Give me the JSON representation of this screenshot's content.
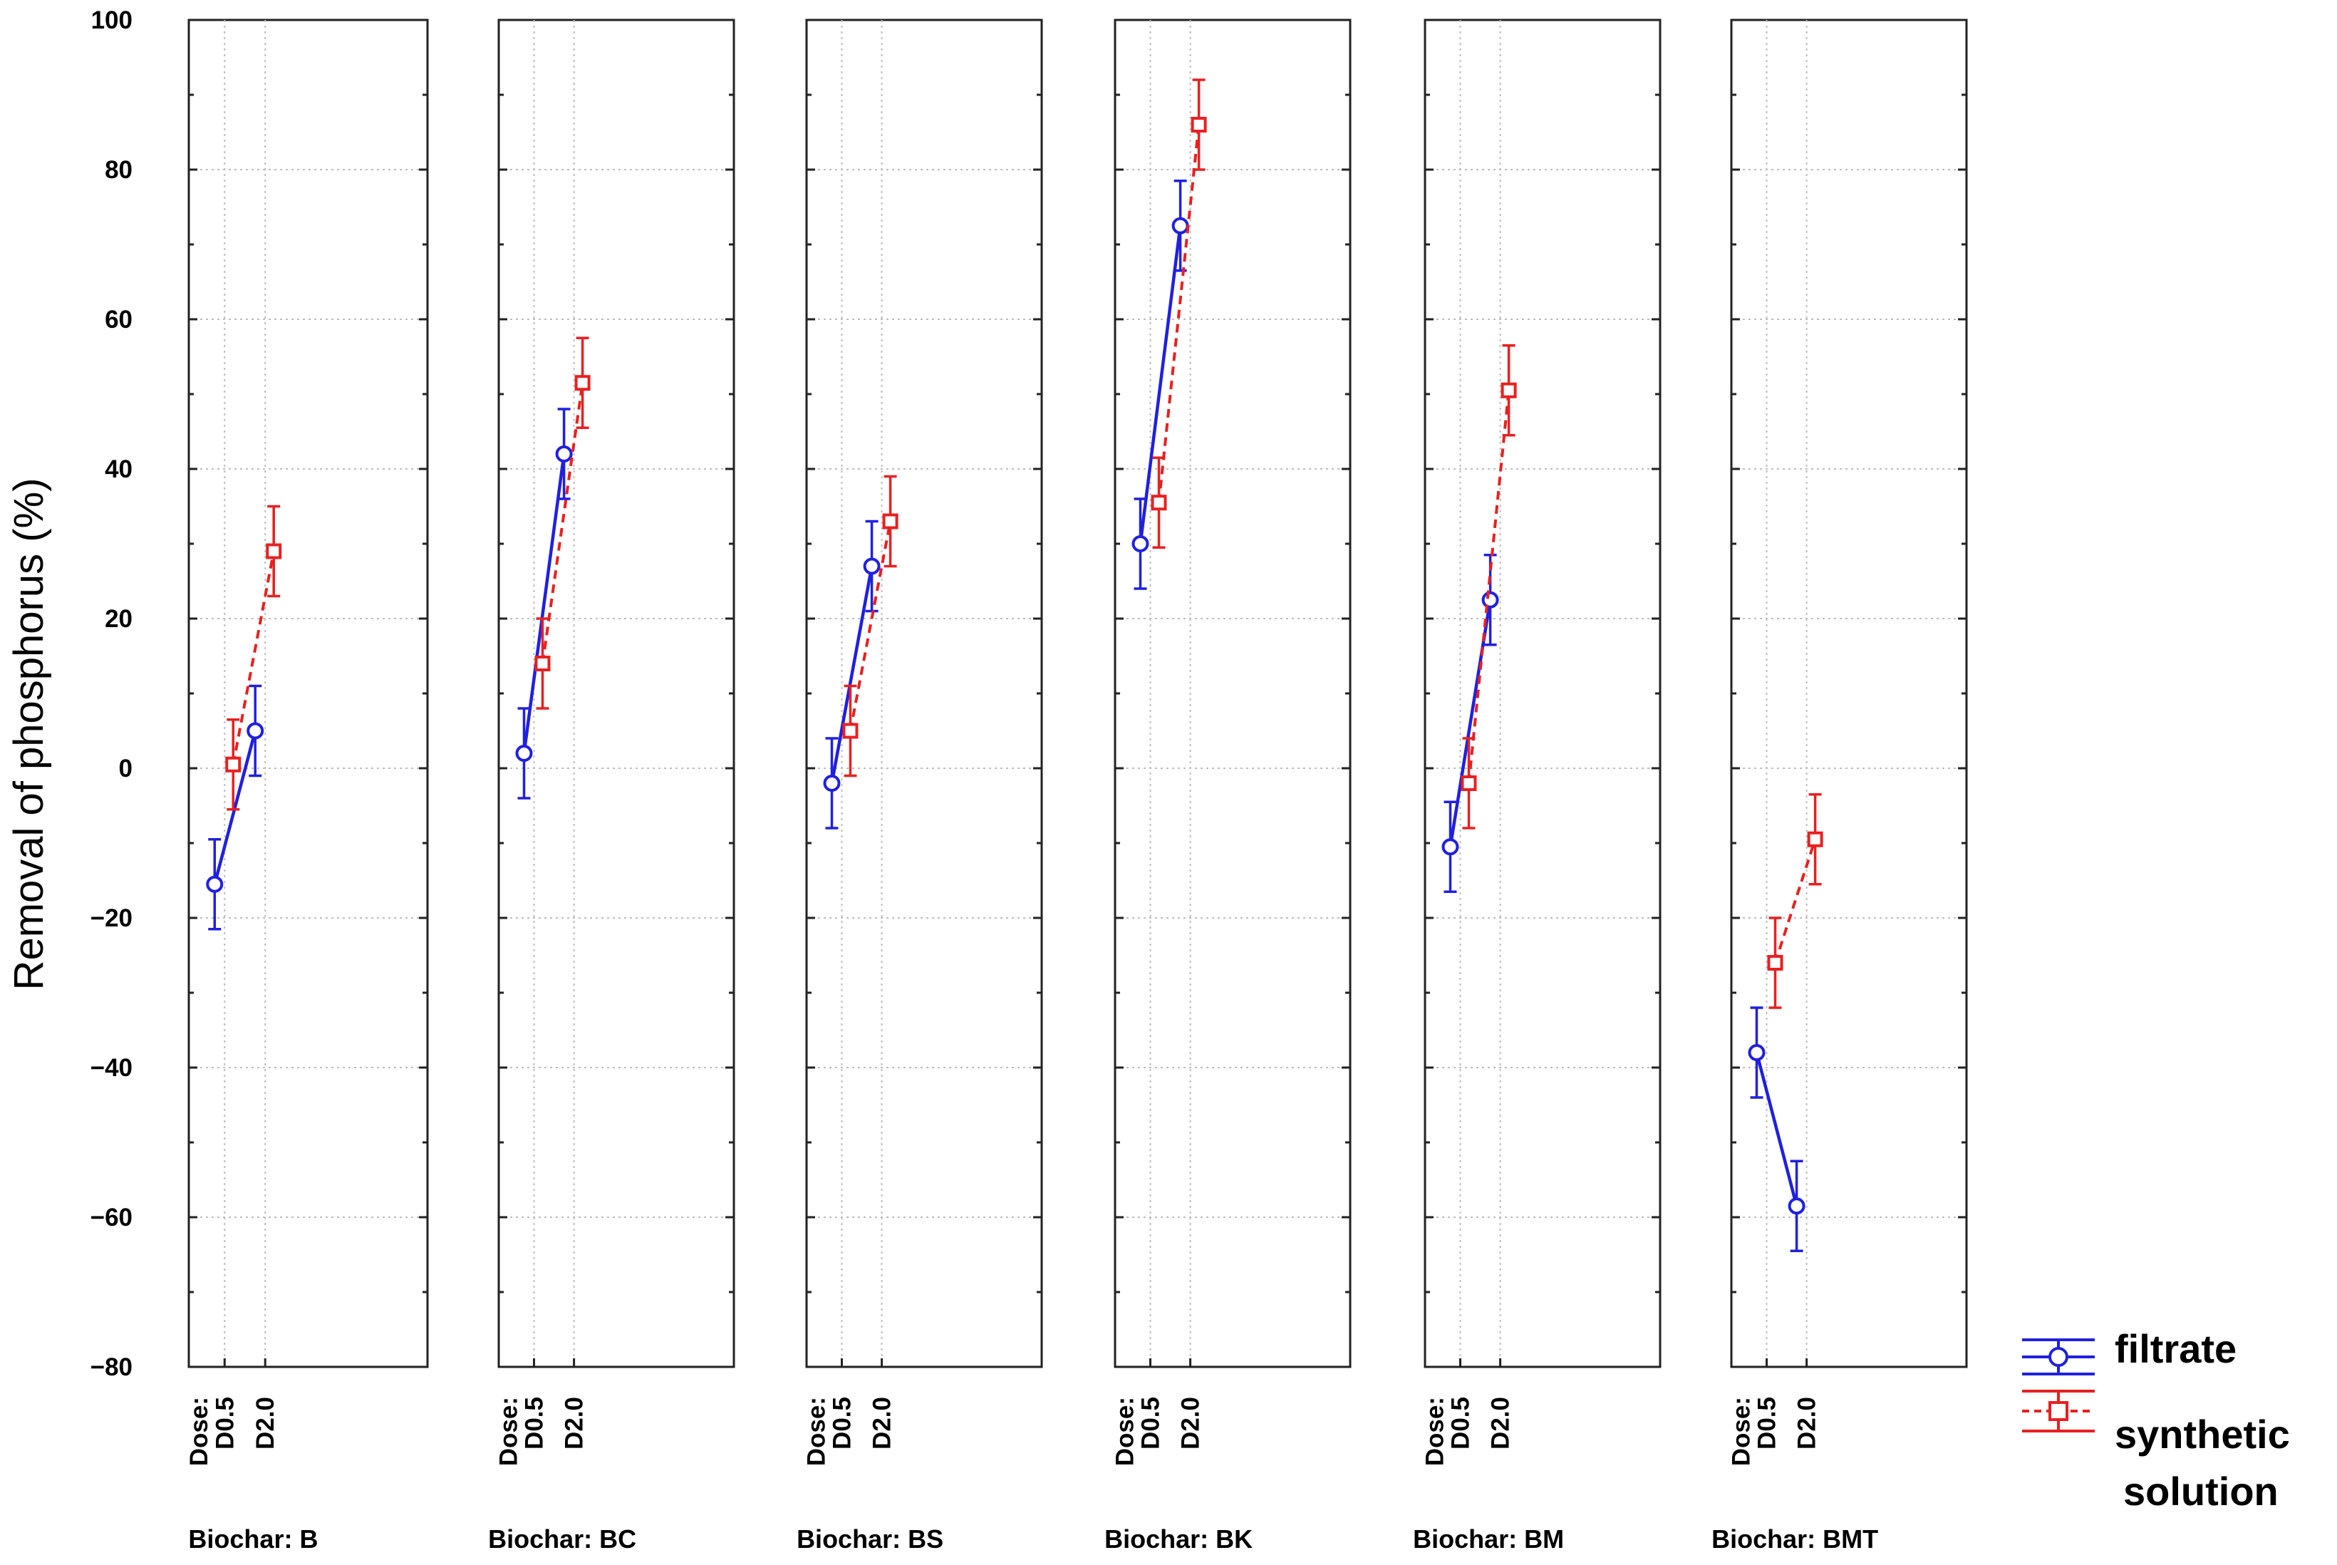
{
  "chart_data": {
    "type": "line",
    "ylabel": "Removal of phosphorus (%)",
    "ylim": [
      -80,
      100
    ],
    "yticks": [
      100,
      80,
      60,
      40,
      20,
      0,
      -20,
      -40,
      -60,
      -80
    ],
    "ytick_labels": [
      "100",
      "80",
      "60",
      "40",
      "20",
      "0",
      "−20",
      "−40",
      "−60",
      "−80"
    ],
    "x_prefix": "Dose:",
    "x_categories": [
      "D0.5",
      "D2.0"
    ],
    "legend": {
      "position": "bottom-right",
      "entries": [
        {
          "label": "filtrate",
          "color": "#2020e0",
          "marker": "circle",
          "line": "solid"
        },
        {
          "label": "synthetic",
          "label2": "solution",
          "color": "#e82020",
          "marker": "square",
          "line": "dashed"
        }
      ]
    },
    "panels": [
      {
        "label": "Biochar: B",
        "series": [
          {
            "name": "filtrate",
            "values": [
              -15.5,
              5
            ],
            "err": [
              6,
              6
            ]
          },
          {
            "name": "synthetic solution",
            "values": [
              0.5,
              29
            ],
            "err": [
              6,
              6
            ]
          }
        ]
      },
      {
        "label": "Biochar: BC",
        "series": [
          {
            "name": "filtrate",
            "values": [
              2,
              42
            ],
            "err": [
              6,
              6
            ]
          },
          {
            "name": "synthetic solution",
            "values": [
              14,
              51.5
            ],
            "err": [
              6,
              6
            ]
          }
        ]
      },
      {
        "label": "Biochar: BS",
        "series": [
          {
            "name": "filtrate",
            "values": [
              -2,
              27
            ],
            "err": [
              6,
              6
            ]
          },
          {
            "name": "synthetic solution",
            "values": [
              5,
              33
            ],
            "err": [
              6,
              6
            ]
          }
        ]
      },
      {
        "label": "Biochar: BK",
        "series": [
          {
            "name": "filtrate",
            "values": [
              30,
              72.5
            ],
            "err": [
              6,
              6
            ]
          },
          {
            "name": "synthetic solution",
            "values": [
              35.5,
              86
            ],
            "err": [
              6,
              6
            ]
          }
        ]
      },
      {
        "label": "Biochar: BM",
        "series": [
          {
            "name": "filtrate",
            "values": [
              -10.5,
              22.5
            ],
            "err": [
              6,
              6
            ]
          },
          {
            "name": "synthetic solution",
            "values": [
              -2,
              50.5
            ],
            "err": [
              6,
              6
            ]
          }
        ]
      },
      {
        "label": "Biochar: BMT",
        "series": [
          {
            "name": "filtrate",
            "values": [
              -38,
              -58.5
            ],
            "err": [
              6,
              6
            ]
          },
          {
            "name": "synthetic solution",
            "values": [
              -26,
              -9.5
            ],
            "err": [
              6,
              6
            ]
          }
        ]
      }
    ]
  }
}
